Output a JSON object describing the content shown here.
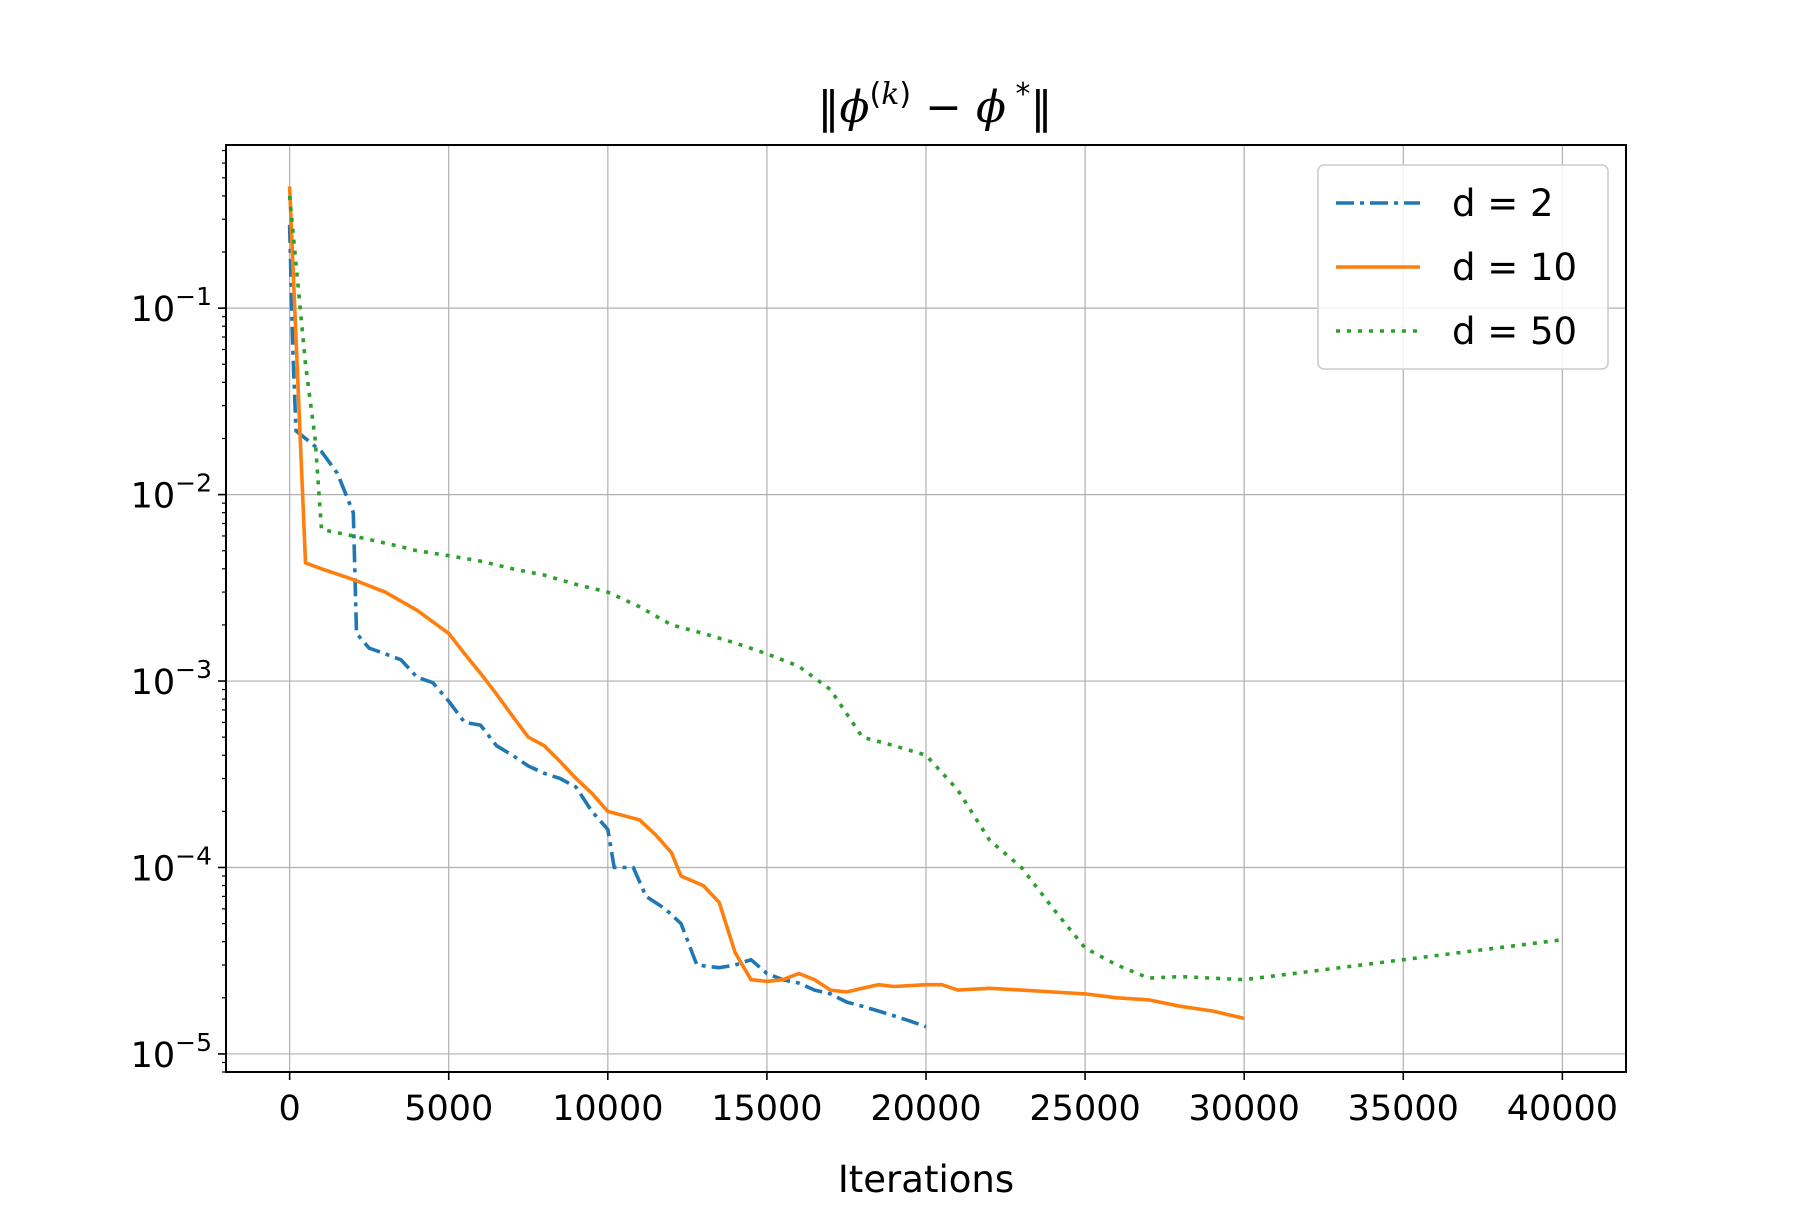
{
  "chart_data": {
    "type": "line",
    "title": "‖φ(k) − φ*‖",
    "xlabel": "Iterations",
    "ylabel": "",
    "yscale": "log",
    "xlim": [
      -2000,
      42000
    ],
    "ylim": [
      8e-06,
      0.75
    ],
    "grid": true,
    "legend_position": "top-right",
    "x_ticks": [
      0,
      5000,
      10000,
      15000,
      20000,
      25000,
      30000,
      35000,
      40000
    ],
    "x_tick_labels": [
      "0",
      "5000",
      "10000",
      "15000",
      "20000",
      "25000",
      "30000",
      "35000",
      "40000"
    ],
    "y_ticks": [
      0.1,
      0.01,
      0.001,
      0.0001,
      1e-05
    ],
    "y_tick_labels": [
      {
        "base": "10",
        "exp": "−1"
      },
      {
        "base": "10",
        "exp": "−2"
      },
      {
        "base": "10",
        "exp": "−3"
      },
      {
        "base": "10",
        "exp": "−4"
      },
      {
        "base": "10",
        "exp": "−5"
      }
    ],
    "series": [
      {
        "name": "d = 2",
        "color": "#1f77b4",
        "style": "dashdot",
        "points": [
          [
            0,
            0.28
          ],
          [
            100,
            0.06
          ],
          [
            200,
            0.022
          ],
          [
            500,
            0.02
          ],
          [
            1000,
            0.017
          ],
          [
            1500,
            0.013
          ],
          [
            2000,
            0.008
          ],
          [
            2100,
            0.0018
          ],
          [
            2500,
            0.0015
          ],
          [
            3000,
            0.0014
          ],
          [
            3500,
            0.0013
          ],
          [
            4000,
            0.00105
          ],
          [
            4500,
            0.00098
          ],
          [
            5000,
            0.00078
          ],
          [
            5500,
            0.0006
          ],
          [
            6000,
            0.00058
          ],
          [
            6500,
            0.00045
          ],
          [
            7000,
            0.0004
          ],
          [
            7500,
            0.00035
          ],
          [
            8000,
            0.00032
          ],
          [
            8500,
            0.0003
          ],
          [
            9000,
            0.00027
          ],
          [
            9500,
            0.0002
          ],
          [
            10000,
            0.00016
          ],
          [
            10200,
            0.0001
          ],
          [
            10800,
            0.0001
          ],
          [
            11200,
            7e-05
          ],
          [
            11800,
            6e-05
          ],
          [
            12300,
            5e-05
          ],
          [
            12800,
            3e-05
          ],
          [
            13500,
            2.9e-05
          ],
          [
            14000,
            3e-05
          ],
          [
            14500,
            3.2e-05
          ],
          [
            15000,
            2.7e-05
          ],
          [
            15500,
            2.5e-05
          ],
          [
            16000,
            2.4e-05
          ],
          [
            16500,
            2.2e-05
          ],
          [
            17000,
            2.1e-05
          ],
          [
            17500,
            1.9e-05
          ],
          [
            18000,
            1.8e-05
          ],
          [
            18500,
            1.7e-05
          ],
          [
            19000,
            1.6e-05
          ],
          [
            19500,
            1.5e-05
          ],
          [
            20000,
            1.4e-05
          ]
        ]
      },
      {
        "name": "d = 10",
        "color": "#ff7f0e",
        "style": "solid",
        "points": [
          [
            0,
            0.45
          ],
          [
            500,
            0.0043
          ],
          [
            1000,
            0.004
          ],
          [
            2000,
            0.0035
          ],
          [
            3000,
            0.003
          ],
          [
            4000,
            0.0024
          ],
          [
            5000,
            0.0018
          ],
          [
            5500,
            0.0014
          ],
          [
            6000,
            0.0011
          ],
          [
            6500,
            0.00085
          ],
          [
            7000,
            0.00065
          ],
          [
            7500,
            0.0005
          ],
          [
            8000,
            0.00045
          ],
          [
            8500,
            0.00037
          ],
          [
            9000,
            0.0003
          ],
          [
            9500,
            0.00025
          ],
          [
            10000,
            0.0002
          ],
          [
            11000,
            0.00018
          ],
          [
            11500,
            0.00015
          ],
          [
            12000,
            0.00012
          ],
          [
            12300,
            9e-05
          ],
          [
            13000,
            8e-05
          ],
          [
            13500,
            6.5e-05
          ],
          [
            14000,
            3.5e-05
          ],
          [
            14500,
            2.5e-05
          ],
          [
            15000,
            2.45e-05
          ],
          [
            15500,
            2.5e-05
          ],
          [
            16000,
            2.7e-05
          ],
          [
            16500,
            2.5e-05
          ],
          [
            17000,
            2.2e-05
          ],
          [
            17500,
            2.15e-05
          ],
          [
            18000,
            2.25e-05
          ],
          [
            18500,
            2.35e-05
          ],
          [
            19000,
            2.3e-05
          ],
          [
            20000,
            2.35e-05
          ],
          [
            20500,
            2.35e-05
          ],
          [
            21000,
            2.2e-05
          ],
          [
            22000,
            2.25e-05
          ],
          [
            23000,
            2.2e-05
          ],
          [
            24000,
            2.15e-05
          ],
          [
            25000,
            2.1e-05
          ],
          [
            26000,
            2e-05
          ],
          [
            27000,
            1.95e-05
          ],
          [
            28000,
            1.8e-05
          ],
          [
            29000,
            1.7e-05
          ],
          [
            30000,
            1.55e-05
          ]
        ]
      },
      {
        "name": "d = 50",
        "color": "#2ca02c",
        "style": "dotted",
        "points": [
          [
            0,
            0.4
          ],
          [
            500,
            0.05
          ],
          [
            800,
            0.02
          ],
          [
            1000,
            0.0065
          ],
          [
            2000,
            0.006
          ],
          [
            3000,
            0.0055
          ],
          [
            4000,
            0.005
          ],
          [
            5000,
            0.0047
          ],
          [
            6000,
            0.0044
          ],
          [
            7000,
            0.004
          ],
          [
            8000,
            0.0037
          ],
          [
            9000,
            0.0033
          ],
          [
            10000,
            0.003
          ],
          [
            11000,
            0.0025
          ],
          [
            12000,
            0.002
          ],
          [
            13000,
            0.0018
          ],
          [
            14000,
            0.0016
          ],
          [
            15000,
            0.0014
          ],
          [
            16000,
            0.0012
          ],
          [
            17000,
            0.0009
          ],
          [
            18000,
            0.0005
          ],
          [
            19000,
            0.00045
          ],
          [
            20000,
            0.0004
          ],
          [
            21000,
            0.00026
          ],
          [
            22000,
            0.00014
          ],
          [
            23000,
            0.0001
          ],
          [
            24000,
            6e-05
          ],
          [
            25000,
            3.7e-05
          ],
          [
            26000,
            3e-05
          ],
          [
            27000,
            2.55e-05
          ],
          [
            28000,
            2.6e-05
          ],
          [
            30000,
            2.5e-05
          ],
          [
            35000,
            3.2e-05
          ],
          [
            40000,
            4.1e-05
          ]
        ]
      }
    ]
  }
}
